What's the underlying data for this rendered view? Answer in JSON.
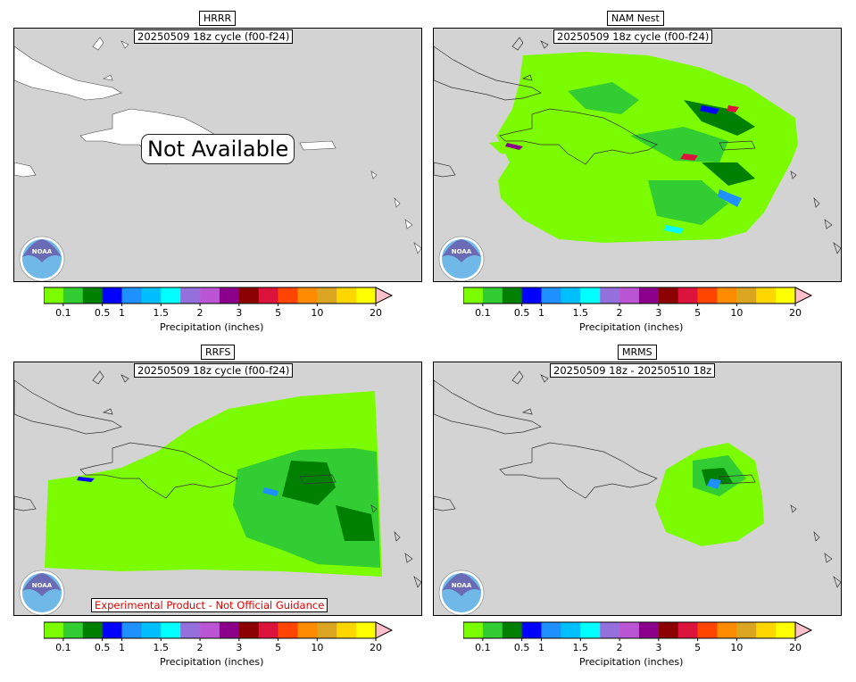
{
  "colorbar": {
    "label": "Precipitation (inches)",
    "ticks": [
      "0.1",
      "0.5",
      "1",
      "1.5",
      "2",
      "3",
      "5",
      "10",
      "20"
    ],
    "colors": [
      "#7cfc00",
      "#32cd32",
      "#008000",
      "#0000ff",
      "#1e90ff",
      "#00bfff",
      "#00ffff",
      "#9370db",
      "#ba55d3",
      "#8b008b",
      "#8b0000",
      "#dc143c",
      "#ff4500",
      "#ff8c00",
      "#daa520",
      "#ffd700",
      "#ffff00"
    ],
    "extend_color": "#ffc0cb"
  },
  "panels": [
    {
      "title": "HRRR",
      "subtitle": "20250509 18z cycle (f00-f24)",
      "overlay": "Not Available"
    },
    {
      "title": "NAM Nest",
      "subtitle": "20250509 18z cycle (f00-f24)"
    },
    {
      "title": "RRFS",
      "subtitle": "20250509 18z cycle (f00-f24)",
      "footer": "Experimental Product - Not Official Guidance"
    },
    {
      "title": "MRMS",
      "subtitle": "20250509 18z - 20250510 18z"
    }
  ],
  "logo_text": "NOAA",
  "colors": {
    "ocean": "#d3d3d3",
    "land": "#ffffff"
  }
}
